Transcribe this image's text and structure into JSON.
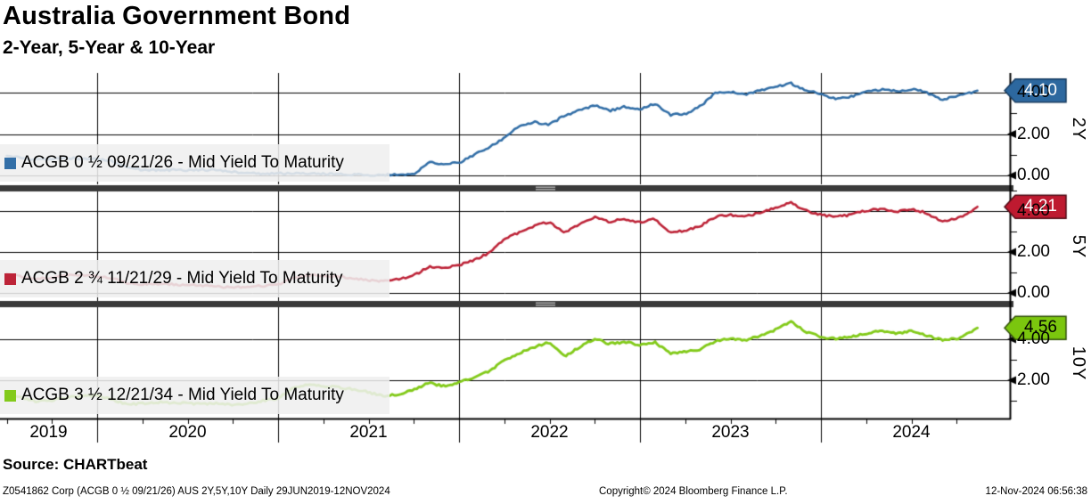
{
  "chart_data": {
    "type": "line",
    "title": "Australia Government Bond",
    "subtitle": "2-Year, 5-Year & 10-Year",
    "x_axis": {
      "tick_labels": [
        "2019",
        "2020",
        "2021",
        "2022",
        "2023",
        "2024"
      ],
      "range_years": [
        2019.463,
        2025.044
      ],
      "minor_tick_interval_years": 0.25,
      "grid": true
    },
    "x": [
      2019.5,
      2019.583,
      2019.667,
      2019.75,
      2019.833,
      2019.917,
      2020.0,
      2020.083,
      2020.167,
      2020.25,
      2020.333,
      2020.417,
      2020.5,
      2020.583,
      2020.667,
      2020.75,
      2020.833,
      2020.917,
      2021.0,
      2021.083,
      2021.167,
      2021.25,
      2021.333,
      2021.417,
      2021.5,
      2021.583,
      2021.667,
      2021.75,
      2021.833,
      2021.917,
      2022.0,
      2022.083,
      2022.167,
      2022.25,
      2022.333,
      2022.417,
      2022.5,
      2022.583,
      2022.667,
      2022.75,
      2022.833,
      2022.917,
      2023.0,
      2023.083,
      2023.167,
      2023.25,
      2023.333,
      2023.417,
      2023.5,
      2023.583,
      2023.667,
      2023.75,
      2023.833,
      2023.917,
      2024.0,
      2024.083,
      2024.167,
      2024.25,
      2024.333,
      2024.417,
      2024.5,
      2024.583,
      2024.667,
      2024.75,
      2024.833,
      2024.865
    ],
    "panels": [
      {
        "id": "2y",
        "axis_title": "2Y",
        "legend": "ACGB 0 ½  09/21/26 - Mid Yield To Maturity",
        "color": "#336fa7",
        "box_fill": "#2d689f",
        "box_border": "#163a5e",
        "box_text": "#ffffff",
        "last_value_label": "4.10",
        "last_value": 4.1,
        "ylim": [
          -0.43,
          4.95
        ],
        "yticks": [
          {
            "value": 0,
            "label": "0.00"
          },
          {
            "value": 2,
            "label": "2.00"
          },
          {
            "value": 4,
            "label": "4.00"
          }
        ],
        "values": [
          0.95,
          0.85,
          0.76,
          0.78,
          0.84,
          0.8,
          0.78,
          0.7,
          0.42,
          0.25,
          0.26,
          0.27,
          0.26,
          0.27,
          0.24,
          0.17,
          0.11,
          0.09,
          0.09,
          0.11,
          0.1,
          0.07,
          0.05,
          0.03,
          0.02,
          0.02,
          0.02,
          0.08,
          0.62,
          0.56,
          0.62,
          0.98,
          1.35,
          1.8,
          2.38,
          2.58,
          2.45,
          2.9,
          3.15,
          3.38,
          3.12,
          3.32,
          3.18,
          3.48,
          2.92,
          2.98,
          3.35,
          3.98,
          4.05,
          3.92,
          4.12,
          4.28,
          4.45,
          4.12,
          3.92,
          3.72,
          3.82,
          4.02,
          4.15,
          4.08,
          4.18,
          4.02,
          3.65,
          3.85,
          4.02,
          4.1
        ]
      },
      {
        "id": "5y",
        "axis_title": "5Y",
        "legend": "ACGB 2 ¾  11/21/29 - Mid Yield To Maturity",
        "color": "#bd2438",
        "box_fill": "#be1a30",
        "box_border": "#4d0a14",
        "box_text": "#ffffff",
        "last_value_label": "4.21",
        "last_value": 4.21,
        "ylim": [
          -0.39,
          4.96
        ],
        "yticks": [
          {
            "value": 0,
            "label": "0.00"
          },
          {
            "value": 2,
            "label": "2.00"
          },
          {
            "value": 4,
            "label": "4.00"
          }
        ],
        "values": [
          0.95,
          0.8,
          0.7,
          0.74,
          0.86,
          0.84,
          0.82,
          0.72,
          0.48,
          0.42,
          0.44,
          0.42,
          0.4,
          0.37,
          0.32,
          0.27,
          0.3,
          0.35,
          0.42,
          0.72,
          0.88,
          0.82,
          0.8,
          0.72,
          0.62,
          0.57,
          0.67,
          0.85,
          1.28,
          1.22,
          1.35,
          1.62,
          1.95,
          2.65,
          2.95,
          3.28,
          3.48,
          2.95,
          3.35,
          3.72,
          3.48,
          3.62,
          3.45,
          3.62,
          2.98,
          3.05,
          3.28,
          3.72,
          3.82,
          3.75,
          3.92,
          4.18,
          4.42,
          4.02,
          3.82,
          3.72,
          3.82,
          4.02,
          4.12,
          3.98,
          4.08,
          3.92,
          3.48,
          3.62,
          4.02,
          4.21
        ]
      },
      {
        "id": "10y",
        "axis_title": "10Y",
        "legend": "ACGB 3 ½  12/21/34 - Mid Yield To Maturity",
        "color": "#83ca1b",
        "box_fill": "#7bc60e",
        "box_border": "#33510a",
        "box_text": "#000000",
        "last_value_label": "4.56",
        "last_value": 4.56,
        "ylim": [
          0.13,
          5.57
        ],
        "yticks": [
          {
            "value": 2,
            "label": "2.00"
          },
          {
            "value": 4,
            "label": "4.00"
          }
        ],
        "values": [
          1.32,
          1.15,
          0.96,
          1.02,
          1.16,
          1.22,
          1.26,
          1.06,
          0.82,
          0.86,
          0.92,
          0.9,
          0.87,
          0.84,
          0.88,
          0.8,
          0.86,
          1.0,
          1.12,
          1.62,
          1.82,
          1.72,
          1.66,
          1.56,
          1.42,
          1.22,
          1.32,
          1.56,
          1.86,
          1.72,
          1.88,
          2.16,
          2.42,
          2.98,
          3.32,
          3.62,
          3.88,
          3.18,
          3.62,
          4.02,
          3.78,
          3.88,
          3.72,
          3.86,
          3.32,
          3.38,
          3.52,
          3.92,
          4.02,
          3.98,
          4.15,
          4.48,
          4.88,
          4.38,
          4.12,
          4.02,
          4.12,
          4.28,
          4.42,
          4.28,
          4.42,
          4.18,
          3.98,
          4.02,
          4.4,
          4.56
        ]
      }
    ]
  },
  "source_label": "Source: CHARTbeat",
  "footer": {
    "left": "Z0541862 Corp (ACGB 0 ½  09/21/26) AUS 2Y,5Y,10Y   Daily 29JUN2019-12NOV2024",
    "center": "Copyright© 2024 Bloomberg Finance L.P.",
    "right": "12-Nov-2024 06:56:38"
  }
}
